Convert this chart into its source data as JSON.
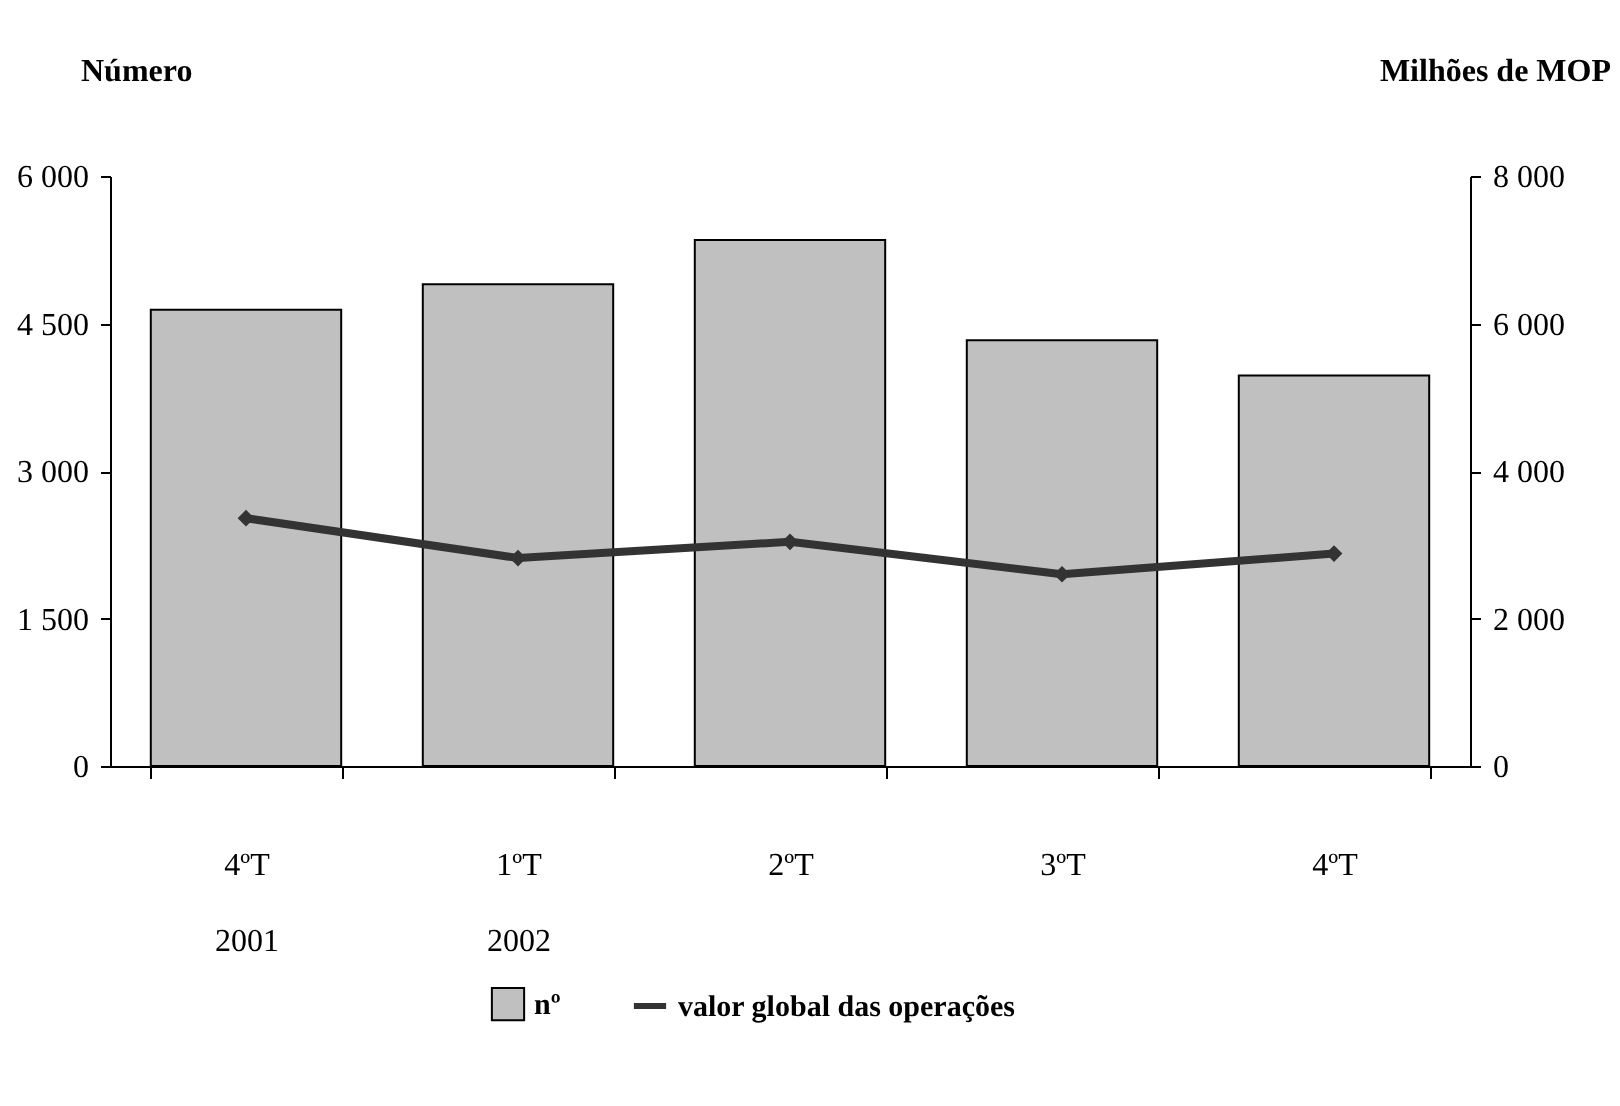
{
  "chart_data": {
    "type": "bar",
    "categories": [
      "4ºT\n2001",
      "1ºT\n2002",
      "2ºT",
      "3ºT",
      "4ºT"
    ],
    "series": [
      {
        "name": "nº",
        "color": "#c0c0c0",
        "values": [
          4640,
          4900,
          5350,
          4330,
          3970
        ]
      },
      {
        "name": "valor global das operações",
        "type": "line",
        "axis": "y2",
        "color": "#333333",
        "values": [
          3360,
          2820,
          3040,
          2600,
          2880
        ]
      }
    ],
    "ylabel": "Número",
    "y2label": "Milhões de MOP",
    "ylim": [
      0,
      6000
    ],
    "yticks": [
      {
        "value": 0,
        "label": "0"
      },
      {
        "value": 1500,
        "label": "1 500"
      },
      {
        "value": 3000,
        "label": "3 000"
      },
      {
        "value": 4500,
        "label": "4 500"
      },
      {
        "value": 6000,
        "label": "6 000"
      }
    ],
    "y2lim": [
      0,
      8000
    ],
    "y2ticks": [
      {
        "value": 0,
        "label": "0"
      },
      {
        "value": 2000,
        "label": "2 000"
      },
      {
        "value": 4000,
        "label": "4 000"
      },
      {
        "value": 6000,
        "label": "6 000"
      },
      {
        "value": 8000,
        "label": "8 000"
      }
    ],
    "legend": "bottom",
    "marker": "diamond",
    "line_style": "solid",
    "grid": false
  }
}
